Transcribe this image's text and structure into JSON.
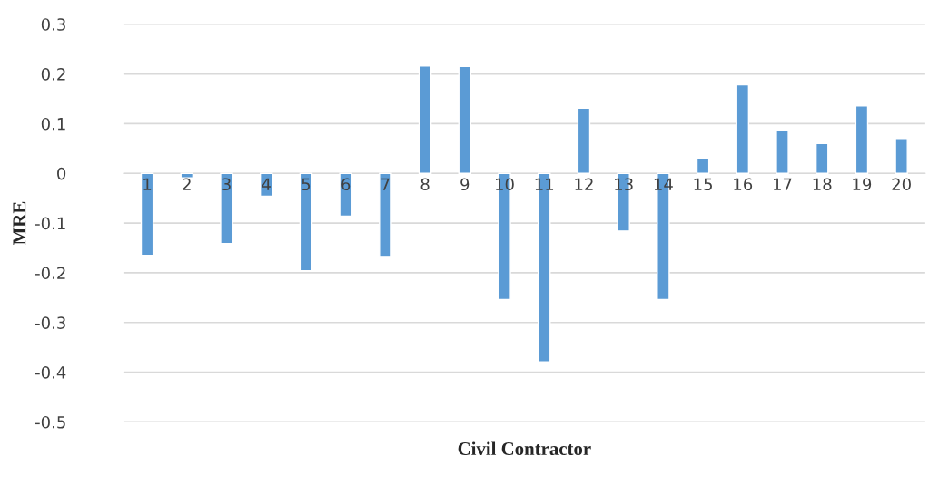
{
  "chart_data": {
    "type": "bar",
    "xlabel": "Civil Contractor",
    "ylabel": "MRE",
    "categories": [
      "1",
      "2",
      "3",
      "4",
      "5",
      "6",
      "7",
      "8",
      "9",
      "10",
      "11",
      "12",
      "13",
      "14",
      "15",
      "16",
      "17",
      "18",
      "19",
      "20"
    ],
    "values": [
      -0.165,
      -0.009,
      -0.141,
      -0.046,
      -0.196,
      -0.086,
      -0.167,
      0.216,
      0.215,
      -0.254,
      -0.379,
      0.131,
      -0.116,
      -0.254,
      0.031,
      0.178,
      0.086,
      0.06,
      0.136,
      0.07
    ],
    "color": "#5b9bd5",
    "ylim": [
      -0.5,
      0.3
    ],
    "yticks": [
      -0.5,
      -0.4,
      -0.3,
      -0.2,
      -0.1,
      0,
      0.1,
      0.2,
      0.3
    ],
    "grid": "y"
  }
}
